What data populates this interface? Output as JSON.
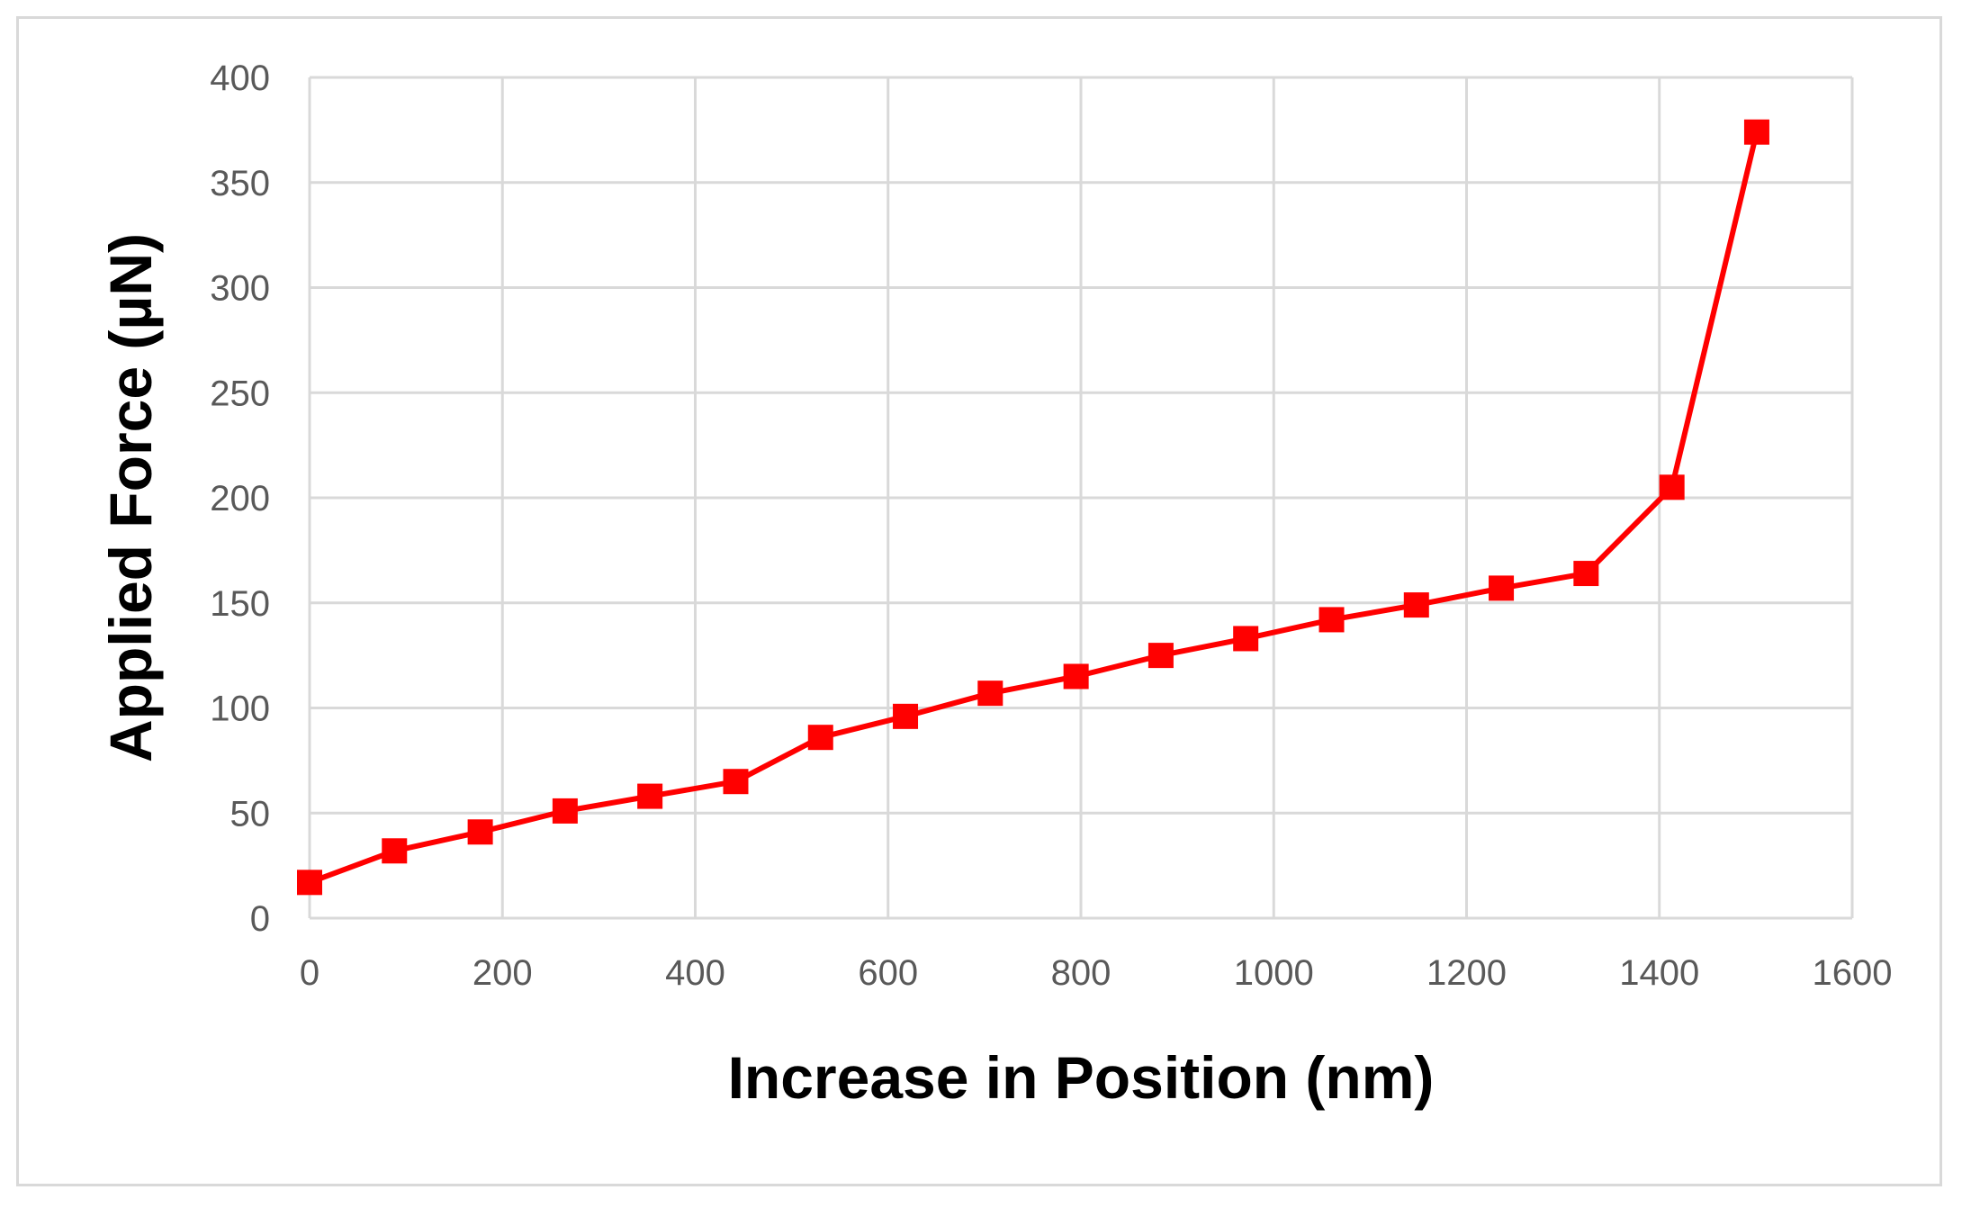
{
  "chart_data": {
    "type": "line",
    "title": "",
    "xlabel": "Increase in Position (nm)",
    "ylabel": "Applied Force  (µN)",
    "xlim": [
      0,
      1600
    ],
    "ylim": [
      0,
      400
    ],
    "x_ticks": [
      "0",
      "200",
      "400",
      "600",
      "800",
      "1000",
      "1200",
      "1400",
      "1600"
    ],
    "y_ticks": [
      "0",
      "50",
      "100",
      "150",
      "200",
      "250",
      "300",
      "350",
      "400"
    ],
    "grid": true,
    "legend": "none",
    "series": [
      {
        "color": "#ff0000",
        "marker": "square",
        "x": [
          0,
          88,
          177,
          265,
          353,
          442,
          530,
          618,
          706,
          795,
          883,
          971,
          1060,
          1148,
          1236,
          1324,
          1413,
          1501
        ],
        "y": [
          17,
          32,
          41,
          51,
          58,
          65,
          86,
          96,
          107,
          115,
          125,
          133,
          142,
          149,
          157,
          164,
          205,
          374
        ]
      }
    ]
  }
}
